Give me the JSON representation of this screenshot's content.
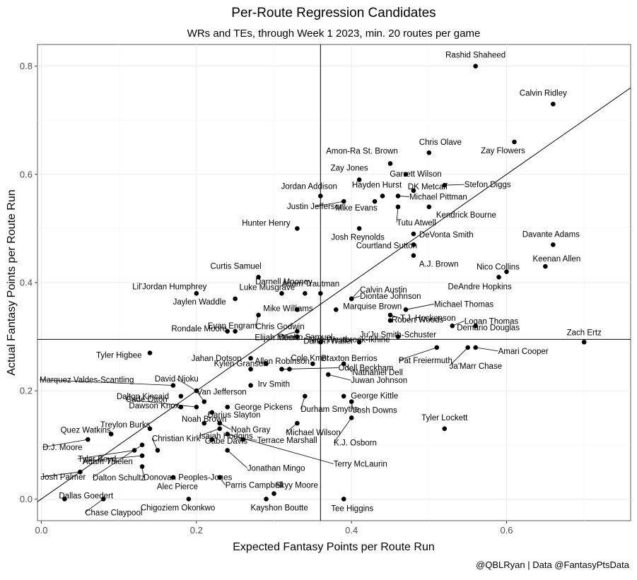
{
  "chart_data": {
    "type": "scatter",
    "title": "Per-Route Regression Candidates",
    "subtitle": "WRs and TEs, through Week 1 2023, min. 20 routes per game",
    "xlabel": "Expected Fantasy Points per Route Run",
    "ylabel": "Actual Fantasy Points per Route Run",
    "caption": "@QBLRyan | Data @FantasyPtsData",
    "xlim": [
      -0.005,
      0.76
    ],
    "ylim": [
      -0.04,
      0.84
    ],
    "x_ticks": [
      "0.0",
      "0.2",
      "0.4",
      "0.6"
    ],
    "y_ticks": [
      "0.0",
      "0.2",
      "0.4",
      "0.6",
      "0.8"
    ],
    "reference_lines": {
      "vline_x": 0.36,
      "hline_y": 0.295,
      "diagonal_slope": 1.0
    },
    "grid": true,
    "points": [
      {
        "name": "Rashid Shaheed",
        "x": 0.56,
        "y": 0.8
      },
      {
        "name": "Calvin Ridley",
        "x": 0.66,
        "y": 0.73
      },
      {
        "name": "Zay Flowers",
        "x": 0.61,
        "y": 0.66
      },
      {
        "name": "Chris Olave",
        "x": 0.5,
        "y": 0.64
      },
      {
        "name": "Amon-Ra St. Brown",
        "x": 0.45,
        "y": 0.62
      },
      {
        "name": "Garrett Wilson",
        "x": 0.47,
        "y": 0.6
      },
      {
        "name": "DK Metcalf",
        "x": 0.48,
        "y": 0.57
      },
      {
        "name": "Stefon Diggs",
        "x": 0.52,
        "y": 0.58
      },
      {
        "name": "Zay Jones",
        "x": 0.41,
        "y": 0.59
      },
      {
        "name": "Jordan Addison",
        "x": 0.36,
        "y": 0.56
      },
      {
        "name": "Hayden Hurst",
        "x": 0.44,
        "y": 0.56
      },
      {
        "name": "Michael Pittman",
        "x": 0.46,
        "y": 0.56
      },
      {
        "name": "Justin Jefferson",
        "x": 0.39,
        "y": 0.55
      },
      {
        "name": "Mike Evans",
        "x": 0.43,
        "y": 0.55
      },
      {
        "name": "Kendrick Bourne",
        "x": 0.5,
        "y": 0.54
      },
      {
        "name": "Tutu Atwell",
        "x": 0.46,
        "y": 0.54
      },
      {
        "name": "Hunter Henry",
        "x": 0.33,
        "y": 0.5
      },
      {
        "name": "Josh Reynolds",
        "x": 0.41,
        "y": 0.5
      },
      {
        "name": "DeVonta Smith",
        "x": 0.48,
        "y": 0.49
      },
      {
        "name": "Davante Adams",
        "x": 0.66,
        "y": 0.47
      },
      {
        "name": "Courtland Sutton",
        "x": 0.48,
        "y": 0.47
      },
      {
        "name": "A.J. Brown",
        "x": 0.48,
        "y": 0.45
      },
      {
        "name": "Keenan Allen",
        "x": 0.65,
        "y": 0.43
      },
      {
        "name": "Nico Collins",
        "x": 0.6,
        "y": 0.42
      },
      {
        "name": "DeAndre Hopkins",
        "x": 0.59,
        "y": 0.41
      },
      {
        "name": "Curtis Samuel",
        "x": 0.28,
        "y": 0.41
      },
      {
        "name": "Darnell Mooney",
        "x": 0.34,
        "y": 0.38
      },
      {
        "name": "Calvin Austin",
        "x": 0.4,
        "y": 0.37
      },
      {
        "name": "Lil'Jordan Humphrey",
        "x": 0.2,
        "y": 0.38
      },
      {
        "name": "Luke Musgrave",
        "x": 0.31,
        "y": 0.38
      },
      {
        "name": "Adam Trautman",
        "x": 0.36,
        "y": 0.38
      },
      {
        "name": "Diontae Johnson",
        "x": 0.4,
        "y": 0.37
      },
      {
        "name": "Jaylen Waddle",
        "x": 0.25,
        "y": 0.37
      },
      {
        "name": "Mike Williams",
        "x": 0.33,
        "y": 0.35
      },
      {
        "name": "Marquise Brown",
        "x": 0.38,
        "y": 0.35
      },
      {
        "name": "Michael Thomas",
        "x": 0.47,
        "y": 0.35
      },
      {
        "name": "T.J. Hockenson",
        "x": 0.45,
        "y": 0.34
      },
      {
        "name": "Chris Godwin",
        "x": 0.28,
        "y": 0.34
      },
      {
        "name": "Robert Woods",
        "x": 0.45,
        "y": 0.33
      },
      {
        "name": "Logan Thomas",
        "x": 0.53,
        "y": 0.32
      },
      {
        "name": "Evan Engram",
        "x": 0.25,
        "y": 0.31
      },
      {
        "name": "Deebo Samuel",
        "x": 0.33,
        "y": 0.31
      },
      {
        "name": "Demario Douglas",
        "x": 0.56,
        "y": 0.32
      },
      {
        "name": "Ju'Ju Smith-Schuster",
        "x": 0.46,
        "y": 0.3
      },
      {
        "name": "Rondale Moore",
        "x": 0.24,
        "y": 0.31
      },
      {
        "name": "Zach Ertz",
        "x": 0.7,
        "y": 0.29
      },
      {
        "name": "Elijah Moore",
        "x": 0.33,
        "y": 0.3
      },
      {
        "name": "Darren Waller",
        "x": 0.36,
        "y": 0.29
      },
      {
        "name": "Nick Westbrook-Ikhine",
        "x": 0.41,
        "y": 0.29
      },
      {
        "name": "Amari Cooper",
        "x": 0.56,
        "y": 0.28
      },
      {
        "name": "Tyler Higbee",
        "x": 0.14,
        "y": 0.27
      },
      {
        "name": "Pat Freiermuth",
        "x": 0.51,
        "y": 0.28
      },
      {
        "name": "Ja'Marr Chase",
        "x": 0.55,
        "y": 0.28
      },
      {
        "name": "Jahan Dotson",
        "x": 0.27,
        "y": 0.26
      },
      {
        "name": "Allen Robinson",
        "x": 0.29,
        "y": 0.25
      },
      {
        "name": "Braxton Berrios",
        "x": 0.35,
        "y": 0.25
      },
      {
        "name": "Nathaniel Dell",
        "x": 0.39,
        "y": 0.25
      },
      {
        "name": "Marquez Valdes-Scantling",
        "x": 0.17,
        "y": 0.21
      },
      {
        "name": "David Njoku",
        "x": 0.2,
        "y": 0.2
      },
      {
        "name": "Kylen Granson",
        "x": 0.27,
        "y": 0.24
      },
      {
        "name": "Cole Kmet",
        "x": 0.32,
        "y": 0.24
      },
      {
        "name": "Odell Beckham",
        "x": 0.31,
        "y": 0.24
      },
      {
        "name": "Juwan Johnson",
        "x": 0.37,
        "y": 0.23
      },
      {
        "name": "Dalton Kincaid",
        "x": 0.18,
        "y": 0.19
      },
      {
        "name": "Van Jefferson",
        "x": 0.21,
        "y": 0.18
      },
      {
        "name": "Irv Smith",
        "x": 0.27,
        "y": 0.21
      },
      {
        "name": "George Kittle",
        "x": 0.39,
        "y": 0.19
      },
      {
        "name": "Cade Otton",
        "x": 0.2,
        "y": 0.17
      },
      {
        "name": "Dawson Knox",
        "x": 0.18,
        "y": 0.17
      },
      {
        "name": "Darius Slayton",
        "x": 0.22,
        "y": 0.16
      },
      {
        "name": "George Pickens",
        "x": 0.24,
        "y": 0.17
      },
      {
        "name": "Durham Smythe",
        "x": 0.34,
        "y": 0.19
      },
      {
        "name": "Josh Downs",
        "x": 0.4,
        "y": 0.18
      },
      {
        "name": "Tyler Lockett",
        "x": 0.52,
        "y": 0.13
      },
      {
        "name": "Treylon Burks",
        "x": 0.14,
        "y": 0.13
      },
      {
        "name": "Noah Brown",
        "x": 0.21,
        "y": 0.14
      },
      {
        "name": "Noah Gray",
        "x": 0.23,
        "y": 0.14
      },
      {
        "name": "K.J. Osborn",
        "x": 0.4,
        "y": 0.15
      },
      {
        "name": "Quez Watkins",
        "x": 0.09,
        "y": 0.12
      },
      {
        "name": "Christian Kirk",
        "x": 0.15,
        "y": 0.09
      },
      {
        "name": "Gabe Davis",
        "x": 0.22,
        "y": 0.11
      },
      {
        "name": "Michael Wilson",
        "x": 0.33,
        "y": 0.14
      },
      {
        "name": "D.J. Moore",
        "x": 0.06,
        "y": 0.11
      },
      {
        "name": "Tyler Boyd",
        "x": 0.12,
        "y": 0.09
      },
      {
        "name": "Terrace Marshall",
        "x": 0.26,
        "y": 0.11
      },
      {
        "name": "Isaiah Hodgins",
        "x": 0.23,
        "y": 0.13
      },
      {
        "name": "Terry McLaurin",
        "x": 0.24,
        "y": 0.12
      },
      {
        "name": "Adam Thielen",
        "x": 0.13,
        "y": 0.08
      },
      {
        "name": "Jonathan Mingo",
        "x": 0.24,
        "y": 0.09
      },
      {
        "name": "Donovan Peoples-Jones",
        "x": 0.13,
        "y": 0.06
      },
      {
        "name": "Josh Palmer",
        "x": 0.05,
        "y": 0.05
      },
      {
        "name": "Dalton Schultz",
        "x": 0.13,
        "y": 0.1
      },
      {
        "name": "Alec Pierce",
        "x": 0.17,
        "y": 0.04
      },
      {
        "name": "Parris Campbell",
        "x": 0.23,
        "y": 0.04
      },
      {
        "name": "Skyy Moore",
        "x": 0.3,
        "y": 0.01
      },
      {
        "name": "Dallas Goedert",
        "x": 0.03,
        "y": 0.0
      },
      {
        "name": "Chase Claypool",
        "x": 0.08,
        "y": 0.0
      },
      {
        "name": "Chigoziem Okonkwo",
        "x": 0.19,
        "y": 0.0
      },
      {
        "name": "Kayshon Boutte",
        "x": 0.29,
        "y": 0.0
      },
      {
        "name": "Tee Higgins",
        "x": 0.39,
        "y": 0.0
      }
    ]
  }
}
